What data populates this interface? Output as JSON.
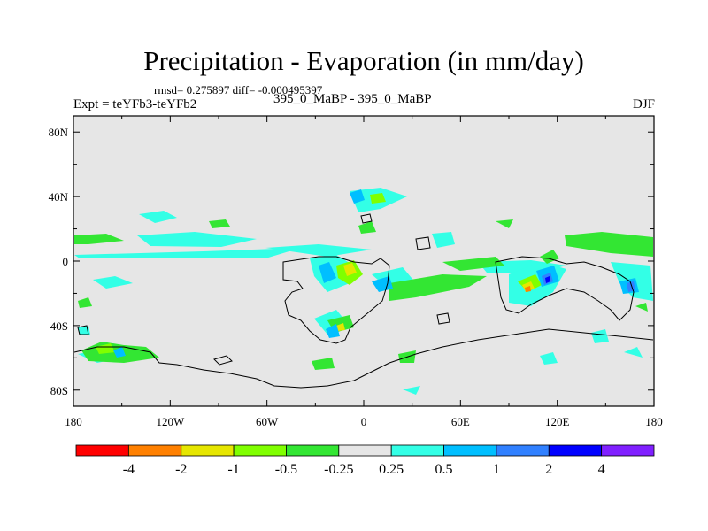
{
  "chart_data": {
    "type": "filled-contour-map",
    "title": "Precipitation - Evaporation (in mm/day)",
    "stats_line": "rmsd= 0.275897 diff= -0.000495397",
    "left_label": "Expt = teYFb3-teYFb2",
    "center_label": "395_0_MaBP - 395_0_MaBP",
    "season": "DJF",
    "x_axis": {
      "range": [
        -180,
        180
      ],
      "major_ticks": [
        -180,
        -120,
        -60,
        0,
        60,
        120,
        180
      ],
      "tick_labels": [
        "180",
        "120W",
        "60W",
        "0",
        "60E",
        "120E",
        "180"
      ]
    },
    "y_axis": {
      "range": [
        -90,
        90
      ],
      "major_ticks": [
        -80,
        -40,
        0,
        40,
        80
      ],
      "tick_labels": [
        "80S",
        "40S",
        "0",
        "40N",
        "80N"
      ]
    },
    "colorbar": {
      "levels": [
        "-4",
        "-2",
        "-1",
        "-0.5",
        "-0.25",
        "0.25",
        "0.5",
        "1",
        "2",
        "4"
      ],
      "colors": [
        "#ff0000",
        "#ff8000",
        "#e6e600",
        "#80ff00",
        "#33e633",
        "#e6e6e6",
        "#33ffe6",
        "#00bfff",
        "#3080ff",
        "#0000ff",
        "#8020ff"
      ]
    },
    "background_color": "#e6e6e6",
    "coastline_color": "#000000"
  }
}
